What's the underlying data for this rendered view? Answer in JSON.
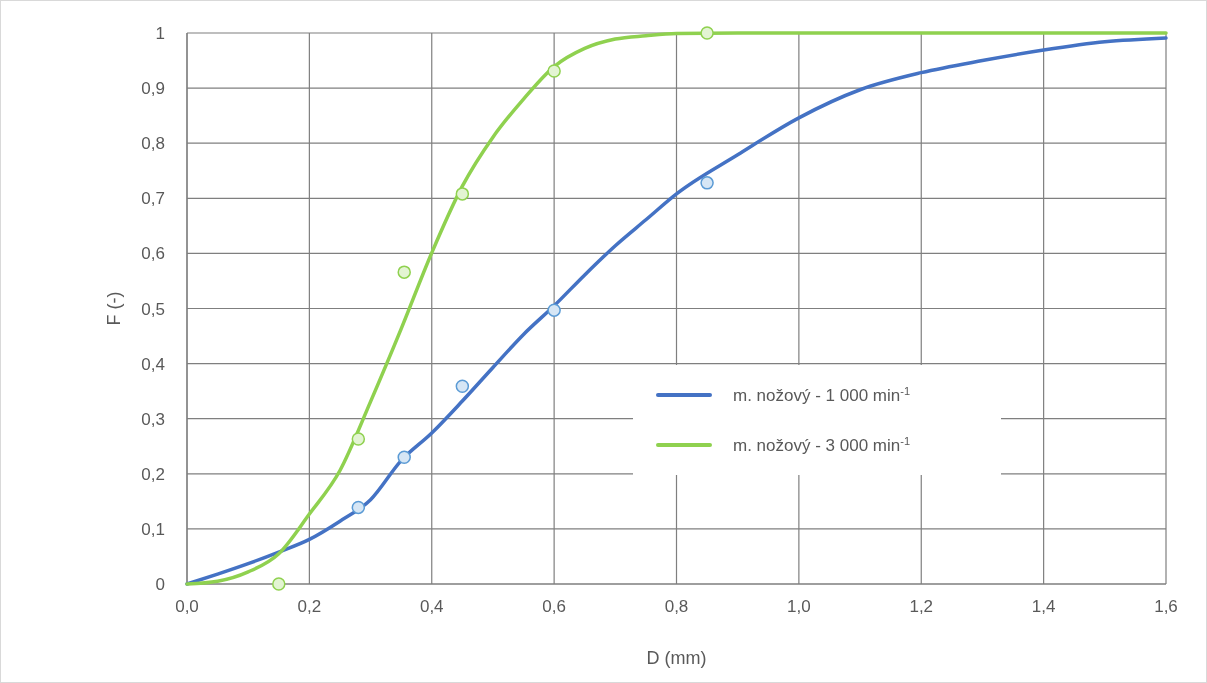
{
  "chart_data": {
    "type": "line",
    "xlabel": "D (mm)",
    "ylabel": "F (-)",
    "xlim": [
      0,
      1.6
    ],
    "ylim": [
      0,
      1
    ],
    "xticks": [
      {
        "value": 0,
        "label": "0,0"
      },
      {
        "value": 0.2,
        "label": "0,2"
      },
      {
        "value": 0.4,
        "label": "0,4"
      },
      {
        "value": 0.6,
        "label": "0,6"
      },
      {
        "value": 0.8,
        "label": "0,8"
      },
      {
        "value": 1.0,
        "label": "1,0"
      },
      {
        "value": 1.2,
        "label": "1,2"
      },
      {
        "value": 1.4,
        "label": "1,4"
      },
      {
        "value": 1.6,
        "label": "1,6"
      }
    ],
    "yticks": [
      0,
      {
        "value": 0.1,
        "label": "0,1"
      },
      {
        "value": 0.2,
        "label": "0,2"
      },
      {
        "value": 0.3,
        "label": "0,3"
      },
      {
        "value": 0.4,
        "label": "0,4"
      },
      {
        "value": 0.5,
        "label": "0,5"
      },
      {
        "value": 0.6,
        "label": "0,6"
      },
      {
        "value": 0.7,
        "label": "0,7"
      },
      {
        "value": 0.8,
        "label": "0,8"
      },
      {
        "value": 0.9,
        "label": "0,9"
      },
      1
    ],
    "grid": true,
    "legend": "bottom",
    "series": [
      {
        "name": "m. nožový - 1 000 min$^{-1}$",
        "color": "#4472c4",
        "marker": "none",
        "x": [
          0,
          0.05,
          0.1,
          0.15,
          0.2,
          0.25,
          0.3,
          0.35,
          0.4,
          0.45,
          0.5,
          0.55,
          0.6,
          0.65,
          0.7,
          0.75,
          0.8,
          0.9,
          1.0,
          1.1,
          1.2,
          1.3,
          1.4,
          1.5,
          1.6
        ],
        "values": [
          0,
          0.018,
          0.037,
          0.058,
          0.081,
          0.114,
          0.153,
          0.224,
          0.274,
          0.332,
          0.393,
          0.453,
          0.505,
          0.561,
          0.614,
          0.661,
          0.708,
          0.779,
          0.846,
          0.897,
          0.928,
          0.95,
          0.969,
          0.984,
          0.991
        ]
      },
      {
        "name": "m. nožový - 3 000 min$^{-1}$",
        "color": "#8fd14f",
        "marker": "none",
        "x": [
          0,
          0.05,
          0.1,
          0.15,
          0.2,
          0.25,
          0.3,
          0.35,
          0.4,
          0.45,
          0.5,
          0.55,
          0.6,
          0.65,
          0.7,
          0.75,
          0.8,
          0.9,
          1.0,
          1.2,
          1.4,
          1.6
        ],
        "values": [
          0,
          0.005,
          0.022,
          0.055,
          0.127,
          0.206,
          0.331,
          0.463,
          0.601,
          0.722,
          0.811,
          0.88,
          0.939,
          0.972,
          0.989,
          0.995,
          0.999,
          1,
          1,
          1,
          1,
          1
        ]
      },
      {
        "type": "scatter",
        "color": "#5b9bd5",
        "marker": "circle",
        "x": [
          0.28,
          0.355,
          0.45,
          0.6,
          0.85
        ],
        "values": [
          0.139,
          0.23,
          0.359,
          0.497,
          0.728
        ]
      },
      {
        "type": "scatter",
        "color": "#8fd14f",
        "marker": "circle",
        "x": [
          0.15,
          0.28,
          0.355,
          0.45,
          0.6,
          0.85
        ],
        "values": [
          0,
          0.263,
          0.566,
          0.708,
          0.931,
          1
        ]
      }
    ]
  }
}
